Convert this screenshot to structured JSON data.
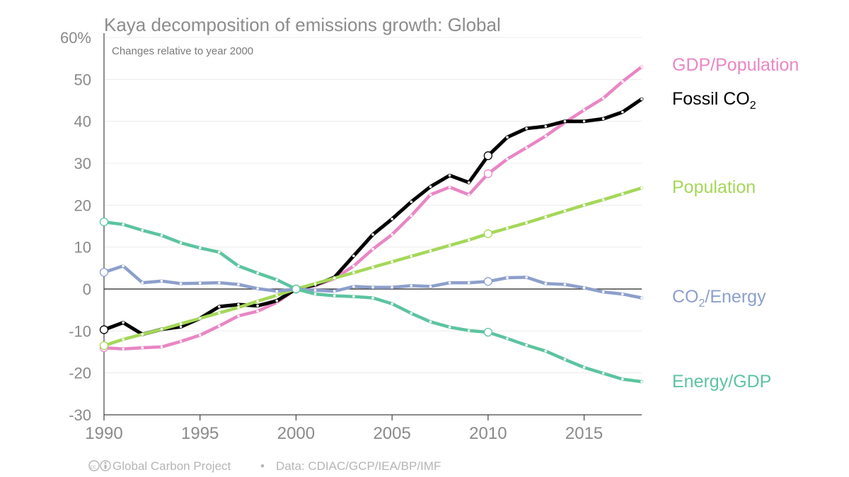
{
  "chart_data": {
    "type": "line",
    "title": "Kaya decomposition of emissions growth: Global",
    "subtitle": "Changes relative to year 2000",
    "ylim": [
      -30,
      60
    ],
    "xlim": [
      1990,
      2018
    ],
    "yticks": [
      "60%",
      "50",
      "40",
      "30",
      "20",
      "10",
      "0",
      "-10",
      "-20",
      "-30"
    ],
    "ytick_values": [
      60,
      50,
      40,
      30,
      20,
      10,
      0,
      -10,
      -20,
      -30
    ],
    "xticks": [
      "1990",
      "1995",
      "2000",
      "2005",
      "2010",
      "2015"
    ],
    "xtick_values": [
      1990,
      1995,
      2000,
      2005,
      2010,
      2015
    ],
    "grid": true,
    "legend": "right, labels at line ends",
    "x": [
      1990,
      1991,
      1992,
      1993,
      1994,
      1995,
      1996,
      1997,
      1998,
      1999,
      2000,
      2001,
      2002,
      2003,
      2004,
      2005,
      2006,
      2007,
      2008,
      2009,
      2010,
      2011,
      2012,
      2013,
      2014,
      2015,
      2016,
      2017,
      2018
    ],
    "series": [
      {
        "name": "GDP/Population",
        "color": "#e986c4",
        "values": [
          -14.0,
          -14.3,
          -14.0,
          -13.8,
          -12.5,
          -11.0,
          -8.8,
          -6.4,
          -5.3,
          -3.2,
          0,
          0.8,
          2.5,
          5.5,
          9.5,
          13.0,
          17.5,
          22.5,
          24.3,
          22.5,
          27.5,
          31.0,
          33.7,
          36.5,
          39.7,
          42.7,
          45.5,
          49.5,
          53.0
        ]
      },
      {
        "name": "Fossil CO",
        "name_sub": "2",
        "color": "#000000",
        "values": [
          -9.7,
          -8.0,
          -10.8,
          -9.6,
          -9.0,
          -7.0,
          -4.2,
          -3.7,
          -4.0,
          -2.8,
          0,
          1.0,
          2.8,
          7.9,
          13.0,
          16.7,
          20.8,
          24.4,
          27.1,
          25.4,
          31.8,
          36.2,
          38.3,
          38.8,
          40.0,
          40.0,
          40.6,
          42.2,
          45.3
        ]
      },
      {
        "name": "Population",
        "color": "#a5d75a",
        "values": [
          -13.5,
          -12.0,
          -10.8,
          -9.6,
          -8.3,
          -7.0,
          -5.7,
          -4.4,
          -2.9,
          -1.5,
          0,
          1.3,
          2.6,
          3.9,
          5.2,
          6.5,
          7.8,
          9.1,
          10.4,
          11.7,
          13.2,
          14.5,
          15.8,
          17.2,
          18.6,
          20.0,
          21.3,
          22.7,
          24.1
        ]
      },
      {
        "name": "CO",
        "name_sub": "2",
        "name_suffix": "/Energy",
        "color": "#8d9fcb",
        "values": [
          4.0,
          5.5,
          1.5,
          1.9,
          1.3,
          1.4,
          1.5,
          1.1,
          0.1,
          -0.5,
          0,
          -0.3,
          -0.5,
          0.6,
          0.4,
          0.4,
          0.8,
          0.6,
          1.5,
          1.5,
          1.8,
          2.7,
          2.8,
          1.3,
          1.1,
          0.3,
          -0.7,
          -1.2,
          -2.1
        ]
      },
      {
        "name": "Energy/GDP",
        "color": "#5cc49f",
        "values": [
          16.0,
          15.4,
          14.0,
          12.8,
          11.0,
          9.8,
          8.8,
          5.5,
          3.8,
          2.2,
          0,
          -1.2,
          -1.6,
          -1.8,
          -2.1,
          -3.5,
          -5.8,
          -7.8,
          -9.1,
          -9.9,
          -10.3,
          -11.8,
          -13.4,
          -14.8,
          -16.8,
          -18.7,
          -20.1,
          -21.5,
          -22.1
        ]
      }
    ]
  },
  "footer": {
    "source": "Global Carbon Project",
    "separator": "•",
    "data": "Data: CDIAC/GCP/IEA/BP/IMF"
  }
}
